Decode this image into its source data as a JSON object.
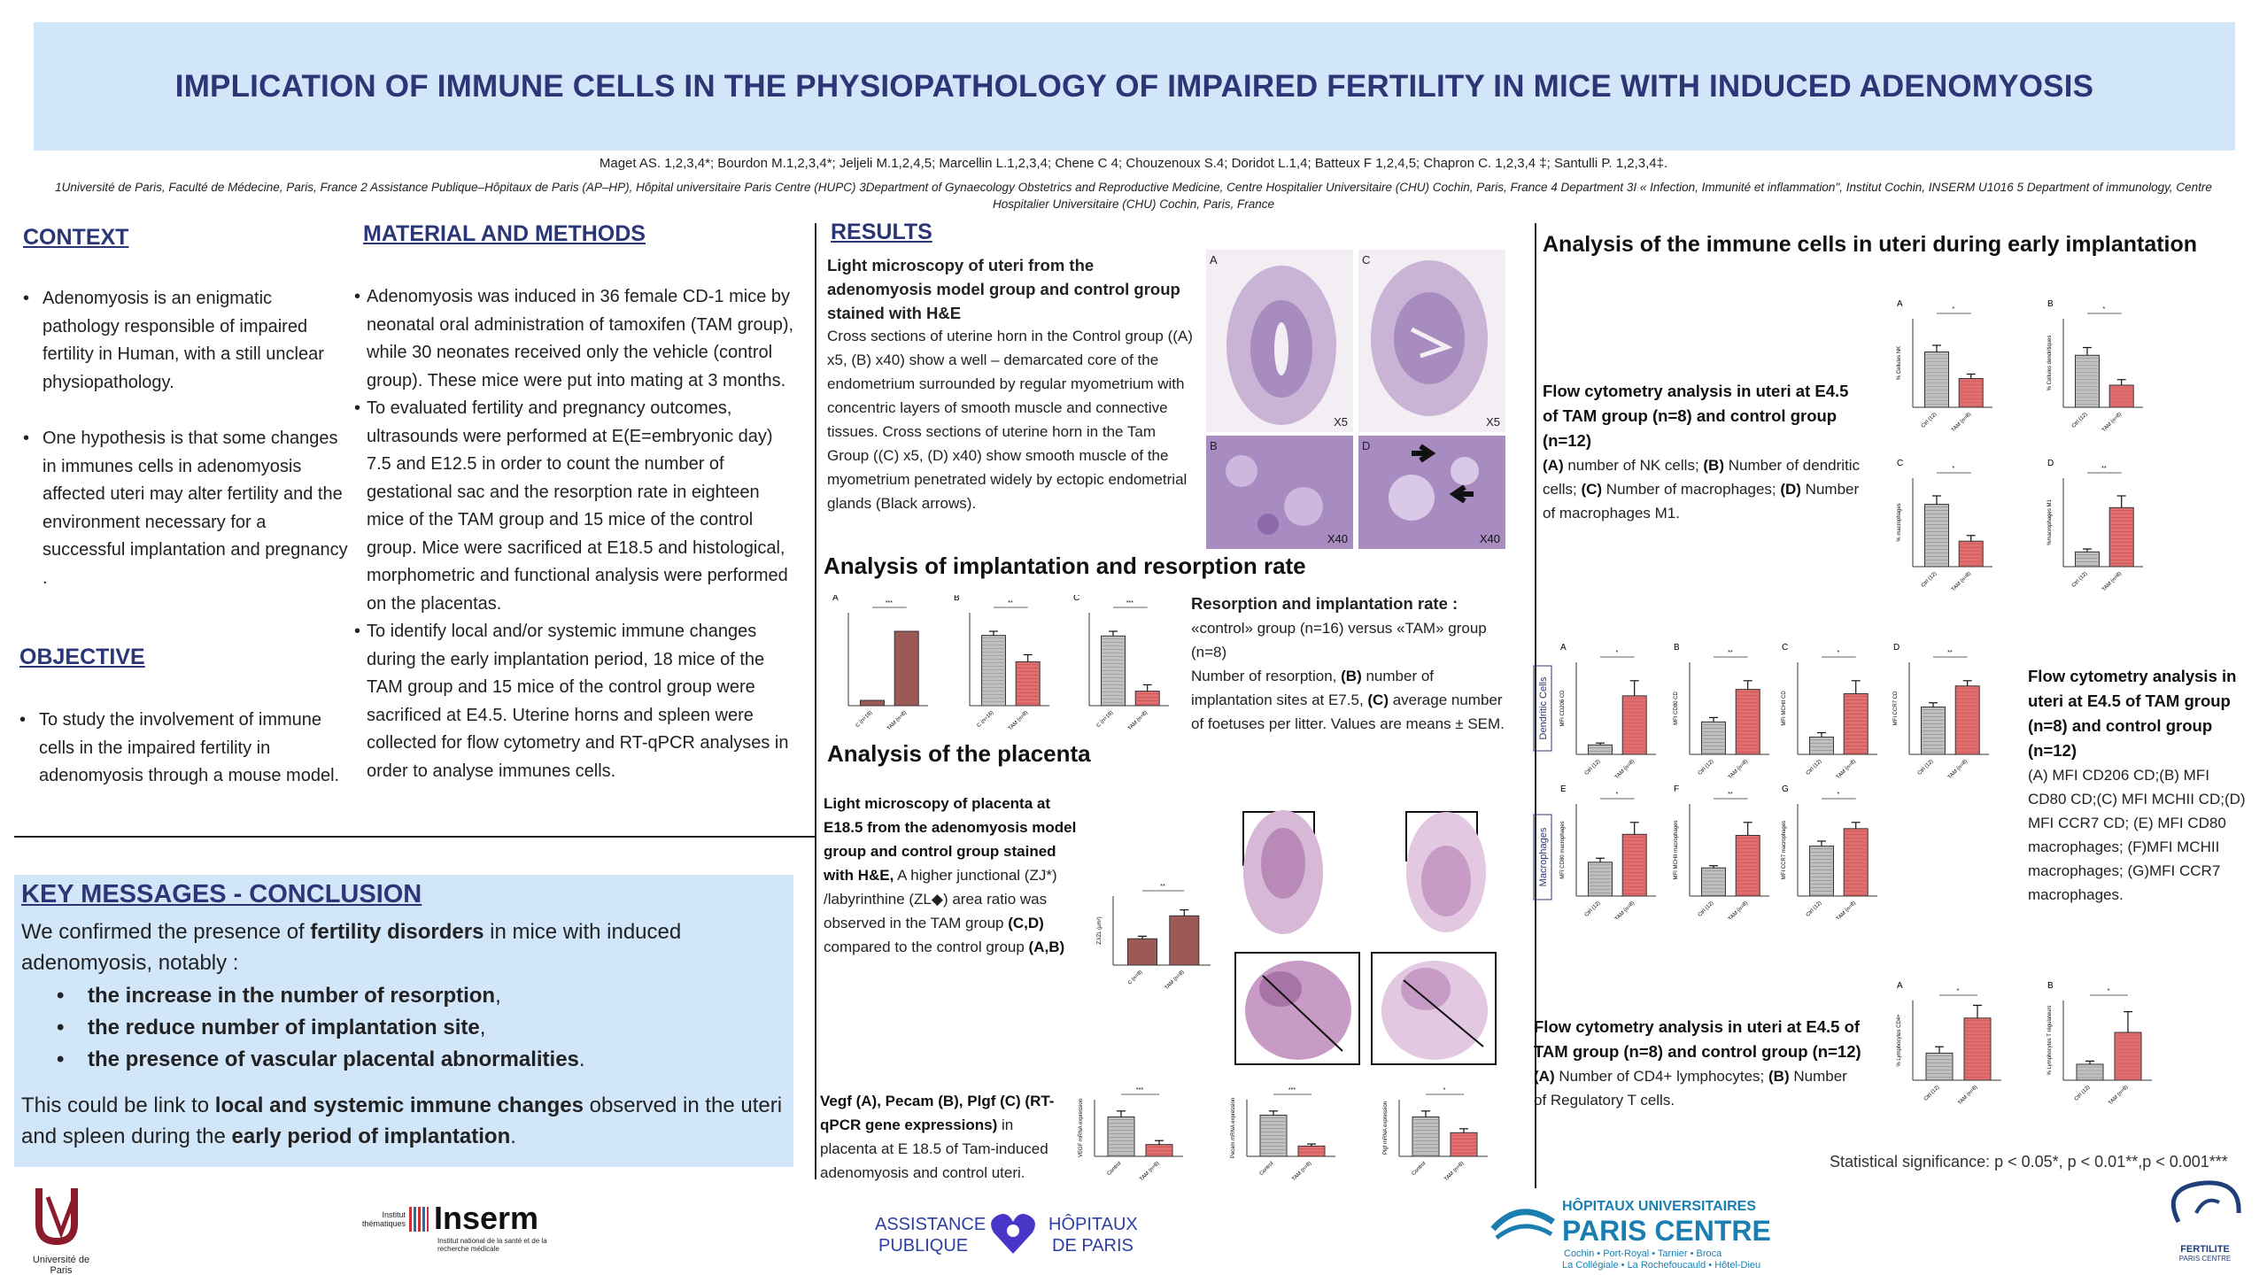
{
  "title": "IMPLICATION OF IMMUNE CELLS IN THE PHYSIOPATHOLOGY OF IMPAIRED FERTILITY IN MICE WITH INDUCED ADENOMYOSIS",
  "authors": "Maget AS. 1,2,3,4*; Bourdon M.1,2,3,4*; Jeljeli M.1,2,4,5; Marcellin L.1,2,3,4; Chene C 4; Chouzenoux S.4; Doridot L.1,4; Batteux F 1,2,4,5; Chapron C. 1,2,3,4 ‡; Santulli P. 1,2,3,4‡.",
  "affiliations": "1Université de Paris, Faculté de Médecine, Paris, France 2 Assistance Publique–Hôpitaux de Paris (AP–HP), Hôpital universitaire Paris Centre (HUPC) 3Department of Gynaecology Obstetrics and Reproductive Medicine, Centre Hospitalier Universitaire (CHU) Cochin, Paris, France 4 Department 3I « Infection, Immunité et inflammation\", Institut Cochin, INSERM U1016 5 Department of immunology, Centre Hospitalier Universitaire (CHU) Cochin, Paris, France",
  "context": {
    "heading": "CONTEXT",
    "bullets": [
      "Adenomyosis is an enigmatic pathology responsible of impaired fertility in Human, with a still unclear physiopathology.",
      "One hypothesis is that some changes in immunes cells in adenomyosis affected uteri may alter fertility and the environment necessary for a successful implantation and pregnancy ."
    ]
  },
  "objective": {
    "heading": "OBJECTIVE",
    "bullet": "To study the involvement of immune cells in the impaired fertility in adenomyosis through a mouse model."
  },
  "methods": {
    "heading": "MATERIAL AND METHODS",
    "bullets": [
      "Adenomyosis was induced in 36 female CD-1 mice by neonatal oral administration of tamoxifen (TAM group), while 30 neonates received only the vehicle (control group). These mice were put into mating at 3 months.",
      "To evaluated fertility and pregnancy outcomes, ultrasounds were performed at E(E=embryonic day) 7.5 and E12.5 in order to count the number of gestational sac and the resorption rate in eighteen mice of the TAM group and 15 mice of the control group. Mice were sacrificed at E18.5 and histological, morphometric and functional analysis were performed on the placentas.",
      "To identify local and/or systemic immune changes during the early implantation period, 18 mice of the TAM group and 15 mice of the control group were sacrificed at E4.5. Uterine horns and spleen were collected for flow cytometry and RT-qPCR analyses in order to analyse immunes cells."
    ]
  },
  "key": {
    "heading": "KEY MESSAGES - CONCLUSION",
    "p1_pre": "We confirmed the presence of ",
    "p1_bold": "fertility disorders",
    "p1_post": " in mice with induced adenomyosis, notably :",
    "items": [
      {
        "bold": "the  increase in the number of resorption",
        "post": ","
      },
      {
        "bold": "the reduce number of implantation site",
        "post": ","
      },
      {
        "bold": "the presence of vascular placental abnormalities",
        "post": "."
      }
    ],
    "p2_pre": "This could be link to ",
    "p2_bold1": "local and systemic immune changes",
    "p2_mid": " observed in the uteri and spleen during the ",
    "p2_bold2": "early period of implantation",
    "p2_post": "."
  },
  "results": {
    "heading": "RESULTS",
    "lm_title": "Light microscopy of uteri from the adenomyosis model group and control group stained with H&E",
    "lm_text": "Cross sections of uterine horn in the Control group ((A) x5, (B) x40) show a well – demarcated core of the endometrium surrounded by regular myometrium with concentric layers of smooth muscle and connective tissues. Cross sections of uterine horn in the Tam Group ((C) x5, (D) x40) show smooth muscle of the myometrium penetrated widely by ectopic endometrial glands (Black arrows).",
    "micro_labels": [
      "A",
      "C",
      "B",
      "D",
      "X5",
      "X5",
      "X40",
      "X40"
    ],
    "impl_heading": "Analysis of implantation and resorption rate",
    "impl_title": "Resorption and implantation rate :",
    "impl_text1": "«control» group (n=16) versus «TAM» group (n=8)",
    "impl_text2_pre": "Number of resorption, ",
    "impl_text2_b": "(B)",
    "impl_text2_mid": " number of implantation sites at E7.5, ",
    "impl_text2_c": "(C)",
    "impl_text2_post": " average number of foetuses per litter. Values are means ± SEM.",
    "plac_heading": "Analysis of the placenta",
    "plac_title": "Light microscopy of placenta at E18.5 from the adenomyosis model group and control group stained with H&E,",
    "plac_text1": " A higher junctional (ZJ*) /labyrinthine (ZL◆) area ratio was observed in the TAM group ",
    "plac_b1": "(C,D)",
    "plac_text2": " compared to the control group ",
    "plac_b2": "(A,B)",
    "vegf_title": "Vegf (A), Pecam (B), Plgf (C) (RT-qPCR gene expressions)",
    "vegf_text": " in placenta at E 18.5 of Tam-induced adenomyosis and control uteri.",
    "immune_heading": "Analysis of the immune cells in uteri during early implantation",
    "fc1_title": "Flow cytometry analysis in uteri at E4.5 of TAM group (n=8) and control group (n=12)",
    "fc1_a": "(A)",
    "fc1_a_t": " number of NK cells; ",
    "fc1_b": "(B)",
    "fc1_b_t": " Number of dendritic cells; ",
    "fc1_c": "(C)",
    "fc1_c_t": " Number of macrophages; ",
    "fc1_d": "(D)",
    "fc1_d_t": " Number of macrophages M1.",
    "fc2_title": "Flow cytometry analysis in uteri at E4.5 of TAM group (n=8) and control group (n=12)",
    "fc2_text": "(A) MFI  CD206 CD;(B) MFI CD80 CD;(C) MFI MCHII CD;(D) MFI CCR7 CD; (E)  MFI CD80 macrophages; (F)MFI MCHII macrophages; (G)MFI CCR7 macrophages.",
    "fc3_title": "Flow cytometry analysis in uteri at E4.5 of TAM group (n=8) and control group (n=12)",
    "fc3_a": "(A)",
    "fc3_a_t": " Number of CD4+ lymphocytes; ",
    "fc3_b": "(B)",
    "fc3_b_t": " Number of Regulatory T cells.",
    "dendritic_label": "Dendritic Cells",
    "macro_label": "Macrophages",
    "stat_note": "Statistical significance: p < 0.05*, p < 0.01**,p < 0.001***"
  },
  "chart_data": [
    {
      "type": "bar",
      "panel": "implantation-A",
      "categories": [
        "C (n=16)",
        "TAM (n=8)"
      ],
      "values": [
        0.5,
        7
      ],
      "sig": "***"
    },
    {
      "type": "bar",
      "panel": "implantation-B",
      "categories": [
        "C (n=16)",
        "TAM (n=8)"
      ],
      "values": [
        12,
        7.5
      ],
      "errors": [
        0.7,
        1.2
      ],
      "sig": "**"
    },
    {
      "type": "bar",
      "panel": "implantation-C",
      "categories": [
        "C (n=16)",
        "TAM (n=8)"
      ],
      "values": [
        12,
        2.5
      ],
      "errors": [
        0.8,
        1.1
      ],
      "sig": "***"
    },
    {
      "type": "bar",
      "panel": "placenta-ratio",
      "categories": [
        "C (n=8)",
        "TAM (n=8)"
      ],
      "values": [
        0.31,
        0.58
      ],
      "errors": [
        0.03,
        0.07
      ],
      "ylabel": "ZJ/ZL (μm²)",
      "sig": "**"
    },
    {
      "type": "bar",
      "panel": "vegf",
      "categories": [
        "Control",
        "TAM (n=8)"
      ],
      "values": [
        1.0,
        0.3
      ],
      "errors": [
        0.15,
        0.1
      ],
      "ylabel": "VEGF mRNA expression",
      "sig": "***"
    },
    {
      "type": "bar",
      "panel": "pecam",
      "categories": [
        "Control",
        "TAM (n=8)"
      ],
      "values": [
        1.0,
        0.25
      ],
      "errors": [
        0.1,
        0.05
      ],
      "ylabel": "Pecam mRNA expression",
      "sig": "***"
    },
    {
      "type": "bar",
      "panel": "plgf",
      "categories": [
        "Control",
        "TAM (n=8)"
      ],
      "values": [
        1.0,
        0.6
      ],
      "errors": [
        0.15,
        0.1
      ],
      "ylabel": "Plgf mRNA expression",
      "sig": "*"
    },
    {
      "type": "bar",
      "panel": "NK",
      "categories": [
        "Ctrl (12)",
        "TAM (n=8)"
      ],
      "values": [
        0.25,
        0.13
      ],
      "errors": [
        0.03,
        0.02
      ],
      "ylabel": "% Cellules NK",
      "ylim": [
        0,
        0.4
      ],
      "sig": "*"
    },
    {
      "type": "bar",
      "panel": "dendritic",
      "categories": [
        "Ctrl (12)",
        "TAM (n=8)"
      ],
      "values": [
        0.47,
        0.2
      ],
      "errors": [
        0.07,
        0.05
      ],
      "ylabel": "% Cellules dendritiques",
      "ylim": [
        0,
        0.8
      ],
      "sig": "*"
    },
    {
      "type": "bar",
      "panel": "macrophages",
      "categories": [
        "Ctrl (12)",
        "TAM (n=8)"
      ],
      "values": [
        1.1,
        0.45
      ],
      "errors": [
        0.15,
        0.1
      ],
      "ylabel": "% macrophages",
      "sig": "*"
    },
    {
      "type": "bar",
      "panel": "macrophages-M1",
      "categories": [
        "Ctrl (12)",
        "TAM (n=8)"
      ],
      "values": [
        0.05,
        0.2
      ],
      "errors": [
        0.01,
        0.04
      ],
      "ylabel": "%macrophages M1",
      "sig": "**"
    },
    {
      "type": "bar",
      "panel": "MFI-CD206-CD",
      "categories": [
        "Ctrl (12)",
        "TAM (n=8)"
      ],
      "values": [
        500,
        3100
      ],
      "errors": [
        100,
        800
      ],
      "ylabel": "MFI CD206 CD",
      "sig": "*"
    },
    {
      "type": "bar",
      "panel": "MFI-CD80-CD",
      "categories": [
        "Ctrl (12)",
        "TAM (n=8)"
      ],
      "values": [
        1500,
        3000
      ],
      "errors": [
        200,
        400
      ],
      "ylabel": "MFI CD80 CD",
      "sig": "**"
    },
    {
      "type": "bar",
      "panel": "MFI-MCHII-CD",
      "categories": [
        "Ctrl (12)",
        "TAM (n=8)"
      ],
      "values": [
        200,
        700
      ],
      "errors": [
        50,
        150
      ],
      "ylabel": "MFI MCHII CD",
      "sig": "*"
    },
    {
      "type": "bar",
      "panel": "MFI-CCR7-CD",
      "categories": [
        "Ctrl (12)",
        "TAM (n=8)"
      ],
      "values": [
        900,
        1300
      ],
      "errors": [
        80,
        100
      ],
      "ylabel": "MFI CCR7 CD",
      "sig": "**"
    },
    {
      "type": "bar",
      "panel": "MFI-CD80-macro",
      "categories": [
        "Ctrl (12)",
        "TAM (n=8)"
      ],
      "values": [
        1700,
        3100
      ],
      "errors": [
        200,
        600
      ],
      "ylabel": "MFI CD80 macrophages",
      "sig": "*"
    },
    {
      "type": "bar",
      "panel": "MFI-MCHII-macro",
      "categories": [
        "Ctrl (12)",
        "TAM (n=8)"
      ],
      "values": [
        1300,
        2800
      ],
      "errors": [
        100,
        600
      ],
      "ylabel": "MFI MCHII macrophages",
      "sig": "**"
    },
    {
      "type": "bar",
      "panel": "MFI-CCR7-macro",
      "categories": [
        "Ctrl (12)",
        "TAM (n=8)"
      ],
      "values": [
        2000,
        2700
      ],
      "errors": [
        200,
        250
      ],
      "ylabel": "MFI CCR7 macrophages",
      "sig": "*"
    },
    {
      "type": "bar",
      "panel": "CD4",
      "categories": [
        "Ctrl (12)",
        "TAM (n=8)"
      ],
      "values": [
        0.17,
        0.39
      ],
      "errors": [
        0.04,
        0.08
      ],
      "ylabel": "% Lymphocytes CD4+",
      "ylim": [
        0,
        0.5
      ],
      "sig": "*"
    },
    {
      "type": "bar",
      "panel": "Treg",
      "categories": [
        "Ctrl (12)",
        "TAM (n=8)"
      ],
      "values": [
        0.0001,
        0.0003
      ],
      "errors": [
        2e-05,
        0.00013
      ],
      "ylabel": "% Lymphocytes T régulateurs",
      "ylim": [
        0,
        0.0005
      ],
      "sig": "*"
    }
  ],
  "logos": {
    "univ": "Université de Paris",
    "inserm_small": "Institut thématiques",
    "inserm": "Inserm",
    "inserm_sub": "Institut national de la santé et de la recherche médicale",
    "aphp1": "ASSISTANCE",
    "aphp2": "PUBLIQUE",
    "aphp3": "HÔPITAUX",
    "aphp4": "DE PARIS",
    "hup1": "HÔPITAUX UNIVERSITAIRES",
    "hup2": "PARIS CENTRE",
    "hup3": "Cochin • Port-Royal • Tarnier • Broca",
    "hup4": "La Collégiale • La Rochefoucauld • Hôtel-Dieu",
    "fert1": "FERTILITE",
    "fert2": "PARIS CENTRE"
  },
  "colors": {
    "navy": "#2b3677",
    "banner": "#d2e6f9",
    "tam_red": "#e07070",
    "control_grey": "#c0c0c0"
  }
}
